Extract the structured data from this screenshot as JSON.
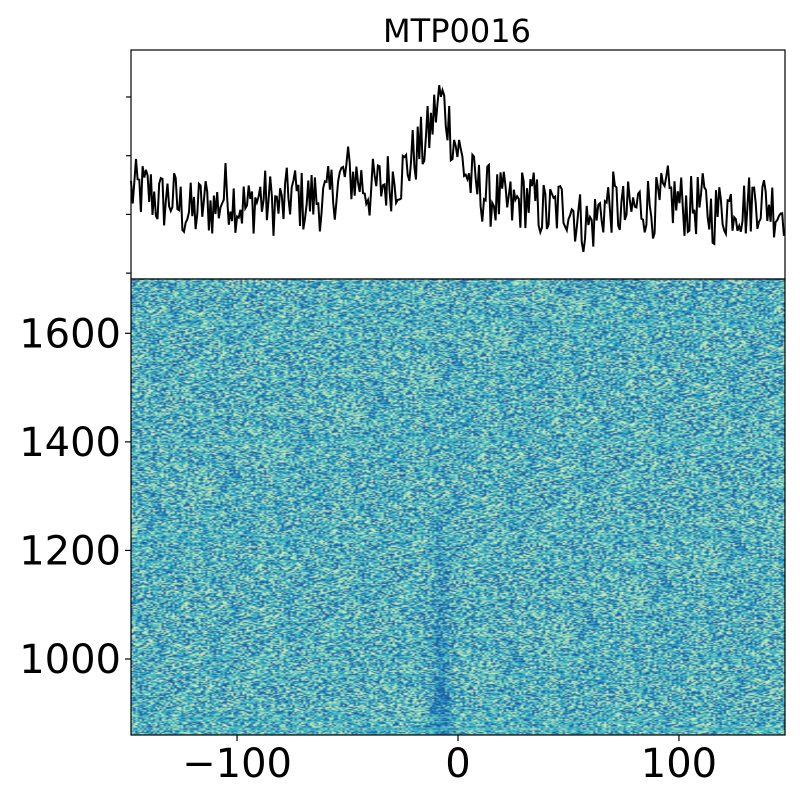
{
  "chart_data": [
    {
      "type": "line",
      "title": "MTP0016",
      "xlabel": "",
      "ylabel": "",
      "xlim": [
        -148,
        148
      ],
      "ylim": [
        -0.55,
        1.4
      ],
      "y_tick_labels_shown": false,
      "series": [
        {
          "color": "#000000",
          "x": [
            -140,
            -135,
            -130,
            -125,
            -120,
            -115,
            -110,
            -105,
            -100,
            -95,
            -90,
            -85,
            -80,
            -75,
            -70,
            -65,
            -60,
            -55,
            -50,
            -45,
            -40,
            -35,
            -30,
            -25,
            -20,
            -15,
            -12,
            -10,
            -8,
            -5,
            -3,
            0,
            3,
            5,
            10,
            15,
            20,
            25,
            30,
            35,
            40,
            45,
            50,
            55,
            60,
            65,
            70,
            75,
            80,
            85,
            90,
            95,
            100,
            105,
            110,
            115,
            120,
            125,
            130,
            135,
            140,
            145
          ],
          "y": [
            0.2,
            0.1,
            0.15,
            0.05,
            0.0,
            0.1,
            0.05,
            0.2,
            0.1,
            0.05,
            0.15,
            0.1,
            0.05,
            0.2,
            0.1,
            0.15,
            0.1,
            0.25,
            0.35,
            0.3,
            0.2,
            0.25,
            0.3,
            0.35,
            0.5,
            0.6,
            0.75,
            0.9,
            1.0,
            0.85,
            0.7,
            0.55,
            0.4,
            0.3,
            0.2,
            0.15,
            0.1,
            0.05,
            0.15,
            0.1,
            0.0,
            0.05,
            0.1,
            -0.05,
            -0.1,
            0.05,
            0.1,
            0.0,
            0.05,
            0.1,
            0.05,
            0.15,
            0.1,
            0.05,
            0.1,
            0.0,
            0.05,
            0.1,
            0.05,
            0.15,
            0.1,
            0.05
          ]
        }
      ]
    },
    {
      "type": "heatmap",
      "title": "",
      "xlabel": "",
      "ylabel": "",
      "xlim": [
        -148,
        148
      ],
      "ylim": [
        860,
        1700
      ],
      "x_ticks": [
        "−100",
        "0",
        "100"
      ],
      "x_tick_values": [
        -100,
        0,
        100
      ],
      "y_ticks": [
        "1000",
        "1200",
        "1400",
        "1600"
      ],
      "y_tick_values": [
        1000,
        1200,
        1400,
        1600
      ],
      "colormap": "YlGnBu",
      "colors": [
        "#c7e9b4",
        "#7fcdbb",
        "#41b6c4",
        "#1d91c0",
        "#225ea8"
      ],
      "signal_track": "weak dark vertical band near x = -8, strongest at low y"
    }
  ]
}
